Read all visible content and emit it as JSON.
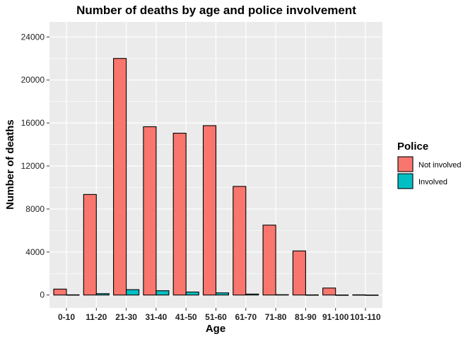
{
  "chart_data": {
    "type": "bar",
    "title": "Number of deaths by age and police involvement",
    "xlabel": "Age",
    "ylabel": "Number of deaths",
    "categories": [
      "0-10",
      "11-20",
      "21-30",
      "31-40",
      "41-50",
      "51-60",
      "61-70",
      "71-80",
      "81-90",
      "91-100",
      "101-110"
    ],
    "series": [
      {
        "name": "Not involved",
        "color": "#F8766D",
        "values": [
          550,
          9350,
          22000,
          15650,
          15050,
          15750,
          10100,
          6500,
          4100,
          650,
          20
        ]
      },
      {
        "name": "Involved",
        "color": "#00BFC4",
        "values": [
          20,
          130,
          500,
          400,
          280,
          200,
          90,
          30,
          15,
          5,
          0
        ]
      }
    ],
    "ylim": [
      -1200,
      25400
    ],
    "yticks": [
      0,
      4000,
      8000,
      12000,
      16000,
      20000,
      24000
    ],
    "ytick_labels": [
      "0",
      "4000",
      "8000",
      "12000",
      "16000",
      "20000",
      "24000"
    ],
    "grid": true,
    "legend": {
      "title": "Police",
      "position": "right"
    }
  }
}
